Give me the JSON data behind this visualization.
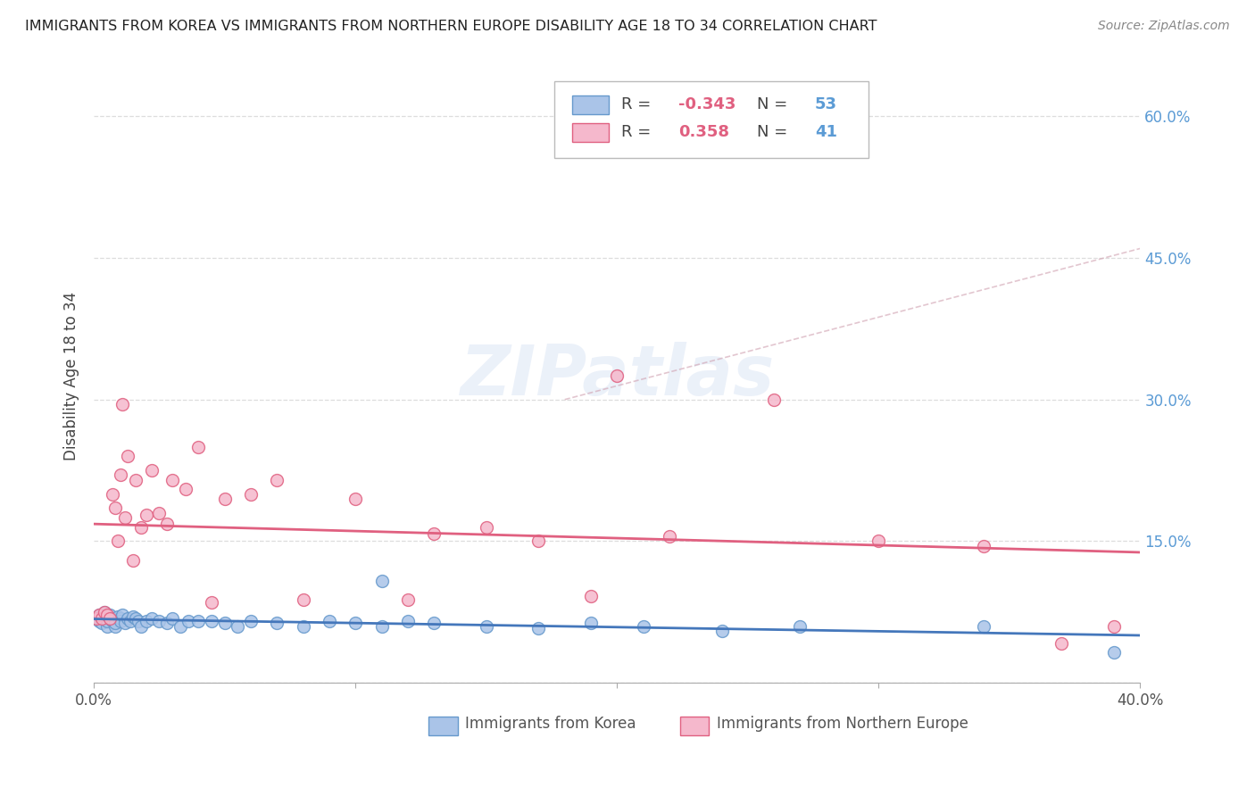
{
  "title": "IMMIGRANTS FROM KOREA VS IMMIGRANTS FROM NORTHERN EUROPE DISABILITY AGE 18 TO 34 CORRELATION CHART",
  "source": "Source: ZipAtlas.com",
  "ylabel": "Disability Age 18 to 34",
  "xlim": [
    0.0,
    0.4
  ],
  "ylim": [
    0.0,
    0.65
  ],
  "yticks": [
    0.0,
    0.15,
    0.3,
    0.45,
    0.6
  ],
  "ytick_labels": [
    "",
    "15.0%",
    "30.0%",
    "45.0%",
    "60.0%"
  ],
  "xticks": [
    0.0,
    0.1,
    0.2,
    0.3,
    0.4
  ],
  "xtick_labels": [
    "0.0%",
    "",
    "",
    "",
    "40.0%"
  ],
  "korea": {
    "name": "Immigrants from Korea",
    "color": "#aac4e8",
    "edge_color": "#6699cc",
    "R": -0.343,
    "N": 53,
    "line_color": "#4477bb",
    "x": [
      0.001,
      0.002,
      0.002,
      0.003,
      0.003,
      0.004,
      0.004,
      0.005,
      0.005,
      0.006,
      0.006,
      0.007,
      0.008,
      0.008,
      0.009,
      0.01,
      0.01,
      0.011,
      0.012,
      0.013,
      0.014,
      0.015,
      0.016,
      0.017,
      0.018,
      0.02,
      0.022,
      0.025,
      0.028,
      0.03,
      0.033,
      0.036,
      0.04,
      0.045,
      0.05,
      0.055,
      0.06,
      0.07,
      0.08,
      0.09,
      0.1,
      0.11,
      0.12,
      0.13,
      0.15,
      0.17,
      0.19,
      0.21,
      0.24,
      0.27,
      0.11,
      0.34,
      0.39
    ],
    "y": [
      0.068,
      0.072,
      0.065,
      0.063,
      0.07,
      0.068,
      0.075,
      0.06,
      0.065,
      0.072,
      0.068,
      0.065,
      0.06,
      0.063,
      0.07,
      0.068,
      0.065,
      0.072,
      0.063,
      0.068,
      0.065,
      0.07,
      0.068,
      0.065,
      0.06,
      0.065,
      0.068,
      0.065,
      0.063,
      0.068,
      0.06,
      0.065,
      0.065,
      0.065,
      0.063,
      0.06,
      0.065,
      0.063,
      0.06,
      0.065,
      0.063,
      0.06,
      0.065,
      0.063,
      0.06,
      0.058,
      0.063,
      0.06,
      0.055,
      0.06,
      0.108,
      0.06,
      0.032
    ]
  },
  "northern_europe": {
    "name": "Immigrants from Northern Europe",
    "color": "#f5b8cc",
    "edge_color": "#e06080",
    "R": 0.358,
    "N": 41,
    "line_color": "#e06080",
    "x": [
      0.001,
      0.002,
      0.003,
      0.004,
      0.005,
      0.006,
      0.007,
      0.008,
      0.009,
      0.01,
      0.011,
      0.012,
      0.013,
      0.015,
      0.016,
      0.018,
      0.02,
      0.022,
      0.025,
      0.028,
      0.03,
      0.035,
      0.04,
      0.045,
      0.05,
      0.06,
      0.07,
      0.08,
      0.1,
      0.12,
      0.13,
      0.15,
      0.17,
      0.19,
      0.2,
      0.22,
      0.26,
      0.3,
      0.34,
      0.37,
      0.39
    ],
    "y": [
      0.068,
      0.072,
      0.068,
      0.075,
      0.072,
      0.068,
      0.2,
      0.185,
      0.15,
      0.22,
      0.295,
      0.175,
      0.24,
      0.13,
      0.215,
      0.165,
      0.178,
      0.225,
      0.18,
      0.168,
      0.215,
      0.205,
      0.25,
      0.085,
      0.195,
      0.2,
      0.215,
      0.088,
      0.195,
      0.088,
      0.158,
      0.165,
      0.15,
      0.092,
      0.325,
      0.155,
      0.3,
      0.15,
      0.145,
      0.042,
      0.06
    ]
  },
  "watermark_text": "ZIPatlas",
  "background_color": "#ffffff",
  "grid_color": "#dddddd",
  "right_axis_color": "#5b9bd5"
}
